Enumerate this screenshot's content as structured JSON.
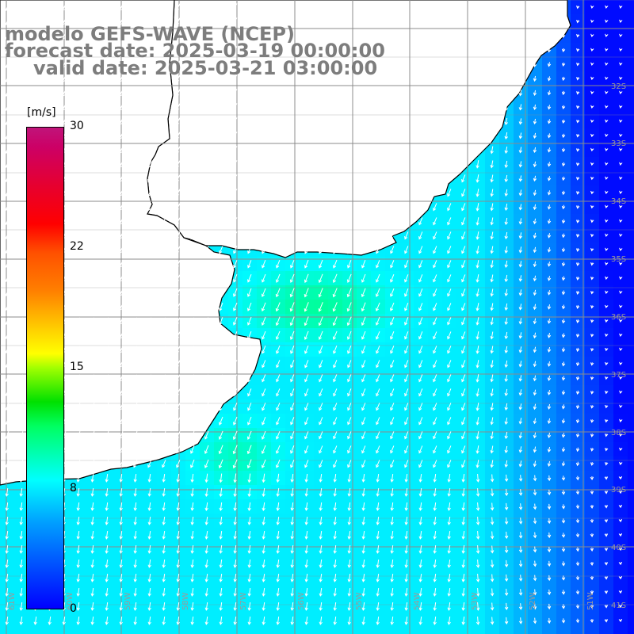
{
  "title": {
    "model": "modelo GEFS-WAVE (NCEP)",
    "forecast": "forecast date: 2025-03-19 00:00:00",
    "valid": "valid date: 2025-03-21 03:00:00"
  },
  "colorbar": {
    "unit": "[m/s]",
    "ticks": [
      "30",
      "22",
      "15",
      "8",
      "0"
    ],
    "range": [
      0,
      30
    ]
  },
  "grid": {
    "lat_labels": [
      "32S",
      "33S",
      "34S",
      "35S",
      "36S",
      "37S",
      "38S",
      "39S",
      "40S",
      "41S"
    ],
    "lon_labels": [
      "61W",
      "60W",
      "59W",
      "58W",
      "57W",
      "56W",
      "55W",
      "54W",
      "53W",
      "52W",
      "51W"
    ]
  },
  "colors": {
    "title_text": "#7d7d7d",
    "grid_line": "#8c8c8c",
    "land": "#ffffff",
    "coastline": "#000000",
    "arrows": "#ffffff"
  },
  "field": {
    "variable": "wind",
    "units": "m/s",
    "direction_description": "predominantly from the north/north-east, flowing south/south-west",
    "approx_speed_range_ms": [
      0,
      12
    ]
  }
}
